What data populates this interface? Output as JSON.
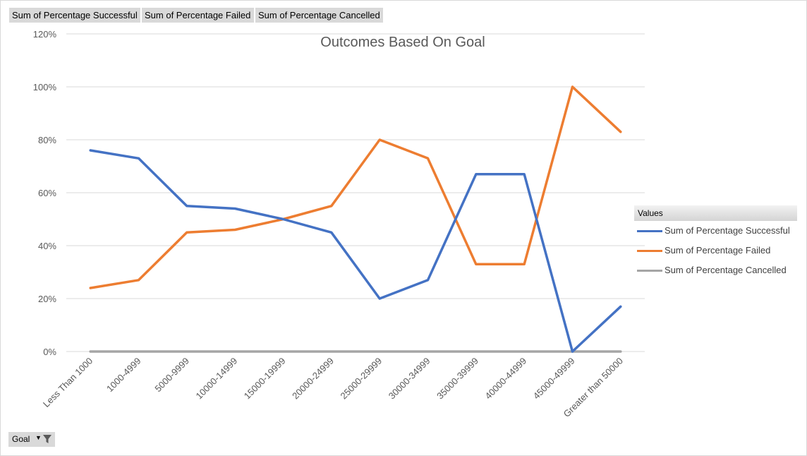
{
  "field_buttons": {
    "successful": "Sum of Percentage Successful",
    "failed": "Sum of Percentage Failed",
    "cancelled": "Sum of Percentage Cancelled"
  },
  "filter": {
    "label": "Goal",
    "dropdown_icon": "dropdown-arrow-icon",
    "filter_icon": "funnel-icon"
  },
  "legend": {
    "header": "Values"
  },
  "colors": {
    "successful": "#4472c4",
    "failed": "#ed7d31",
    "cancelled": "#a5a5a5",
    "grid": "#d9d9d9",
    "text": "#595959"
  },
  "chart_data": {
    "type": "line",
    "title": "Outcomes Based On Goal",
    "categories": [
      "Less Than 1000",
      "1000-4999",
      "5000-9999",
      "10000-14999",
      "15000-19999",
      "20000-24999",
      "25000-29999",
      "30000-34999",
      "35000-39999",
      "40000-44999",
      "45000-49999",
      "Greater than 50000"
    ],
    "series": [
      {
        "name": "Sum of Percentage Successful",
        "color": "#4472c4",
        "values": [
          0.76,
          0.73,
          0.55,
          0.54,
          0.5,
          0.45,
          0.2,
          0.27,
          0.67,
          0.67,
          0.0,
          0.17
        ]
      },
      {
        "name": "Sum of Percentage Failed",
        "color": "#ed7d31",
        "values": [
          0.24,
          0.27,
          0.45,
          0.46,
          0.5,
          0.55,
          0.8,
          0.73,
          0.33,
          0.33,
          1.0,
          0.83
        ]
      },
      {
        "name": "Sum of Percentage Cancelled",
        "color": "#a5a5a5",
        "values": [
          0,
          0,
          0,
          0,
          0,
          0,
          0,
          0,
          0,
          0,
          0,
          0
        ]
      }
    ],
    "ylim": [
      0,
      1.2
    ],
    "yticks": [
      "0%",
      "20%",
      "40%",
      "60%",
      "80%",
      "100%",
      "120%"
    ],
    "grid": true,
    "legend_position": "right"
  }
}
